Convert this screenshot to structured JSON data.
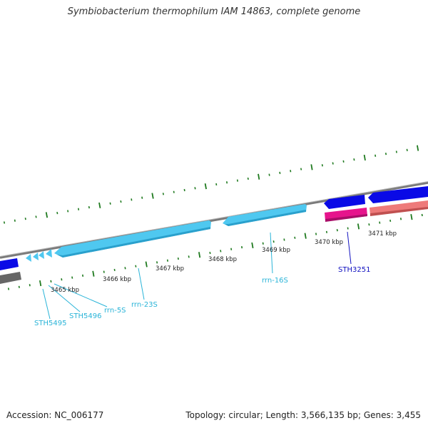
{
  "title": "Symbiobacterium thermophilum IAM 14863, complete genome",
  "footer": {
    "accession": "Accession: NC_006177",
    "summary": "Topology: circular; Length: 3,566,135 bp; Genes: 3,455"
  },
  "colors": {
    "backbone": "#808080",
    "rrna": "#4fc8f0",
    "cds_dark_blue": "#0a0ae6",
    "cds_magenta": "#e6148c",
    "cds_salmon": "#ee7a7a",
    "cds_gray": "#666666",
    "tick": "#1f7a1f",
    "label_cyan": "#2ab4d8",
    "label_blue": "#1010c0"
  },
  "scale_labels": [
    "3465 kbp",
    "3466 kbp",
    "3467 kbp",
    "3468 kbp",
    "3469 kbp",
    "3470 kbp",
    "3471 kbp"
  ],
  "gene_labels": [
    {
      "name": "STH5495",
      "color": "cyan"
    },
    {
      "name": "STH5496",
      "color": "cyan"
    },
    {
      "name": "rrn-5S",
      "color": "cyan"
    },
    {
      "name": "rrn-23S",
      "color": "cyan"
    },
    {
      "name": "rrn-16S",
      "color": "cyan"
    },
    {
      "name": "STH3251",
      "color": "blue"
    }
  ]
}
